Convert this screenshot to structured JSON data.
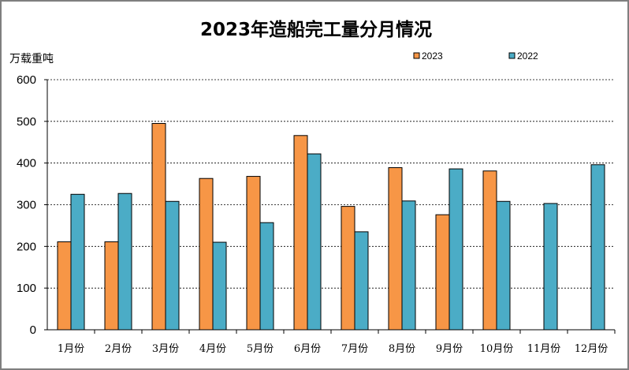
{
  "chart_data": {
    "type": "bar",
    "title": "2023年造船完工量分月情况",
    "ylabel": "万载重吨",
    "xlabel": "",
    "ylim": [
      0,
      600
    ],
    "yticks": [
      0,
      100,
      200,
      300,
      400,
      500,
      600
    ],
    "grid": true,
    "legend_position": "top-right",
    "categories": [
      "1月份",
      "2月份",
      "3月份",
      "4月份",
      "5月份",
      "6月份",
      "7月份",
      "8月份",
      "9月份",
      "10月份",
      "11月份",
      "12月份"
    ],
    "series": [
      {
        "name": "2023",
        "color": "#f79646",
        "values": [
          211,
          211,
          495,
          363,
          368,
          466,
          296,
          389,
          276,
          381,
          null,
          null
        ]
      },
      {
        "name": "2022",
        "color": "#4bacc6",
        "values": [
          325,
          327,
          308,
          210,
          257,
          422,
          235,
          309,
          386,
          308,
          303,
          396
        ]
      }
    ]
  }
}
